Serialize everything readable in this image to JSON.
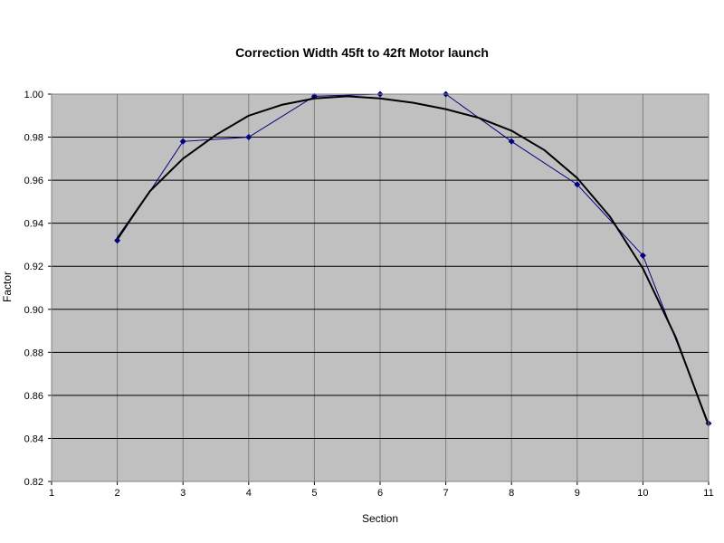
{
  "chart_data": {
    "type": "scatter",
    "title": "Correction Width 45ft to 42ft Motor launch",
    "xlabel": "Section",
    "ylabel": "Factor",
    "xlim": [
      1,
      11
    ],
    "ylim": [
      0.82,
      1.0
    ],
    "x_ticks": [
      "1",
      "2",
      "3",
      "4",
      "5",
      "6",
      "7",
      "8",
      "9",
      "10",
      "11"
    ],
    "y_ticks": [
      "0.82",
      "0.84",
      "0.86",
      "0.88",
      "0.90",
      "0.92",
      "0.94",
      "0.96",
      "0.98",
      "1.00"
    ],
    "grid": true,
    "legend": "none",
    "plot_background": "#c0c0c0",
    "series": [
      {
        "kind": "line-with-markers",
        "color": "#000080",
        "x": [
          2,
          3,
          4,
          5,
          6,
          7,
          8,
          9,
          10,
          11
        ],
        "y": [
          0.932,
          0.978,
          0.98,
          0.999,
          1.0,
          1.0,
          0.978,
          0.958,
          0.925,
          0.847
        ]
      },
      {
        "kind": "trendline",
        "color": "#000000",
        "x": [
          2,
          2.5,
          3,
          3.5,
          4,
          4.5,
          5,
          5.5,
          6,
          6.5,
          7,
          7.5,
          8,
          8.5,
          9,
          9.5,
          10,
          10.5,
          11
        ],
        "y": [
          0.933,
          0.955,
          0.97,
          0.981,
          0.99,
          0.995,
          0.998,
          0.999,
          0.998,
          0.996,
          0.993,
          0.989,
          0.983,
          0.974,
          0.961,
          0.943,
          0.919,
          0.887,
          0.846
        ]
      }
    ]
  }
}
